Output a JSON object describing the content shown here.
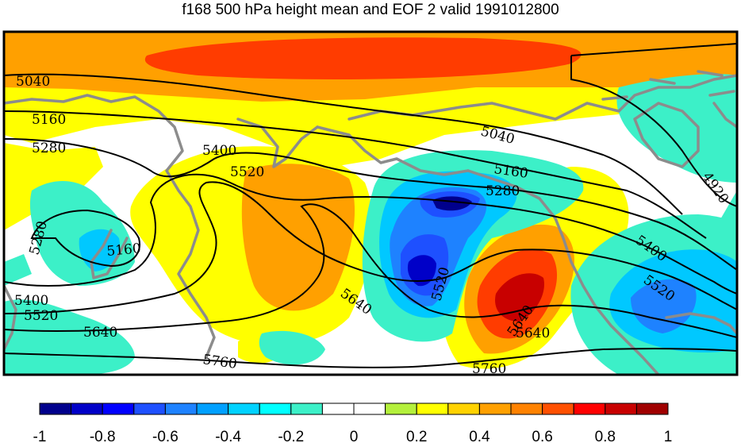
{
  "title": "f168 500 hPa height mean and EOF 2 valid 1991012800",
  "contour_labels": [
    "5040",
    "5160",
    "5280",
    "5400",
    "5520",
    "5640",
    "5760",
    "5040",
    "5160",
    "5280",
    "5400",
    "5520",
    "5640",
    "5760",
    "4920",
    "5280",
    "5160",
    "5400",
    "5520",
    "5640",
    "5640",
    "5520"
  ],
  "colorbar": {
    "ticks": [
      "-1",
      "-0.8",
      "-0.6",
      "-0.4",
      "-0.2",
      "0",
      "0.2",
      "0.4",
      "0.6",
      "0.8",
      "1"
    ],
    "colors": [
      "#00008c",
      "#0000c8",
      "#0000ff",
      "#1e50ff",
      "#1e82ff",
      "#00a0ff",
      "#00d2ff",
      "#00ffff",
      "#3cf0c8",
      "#ffffff",
      "#ffffff",
      "#b4f03c",
      "#ffff00",
      "#ffd200",
      "#ffa000",
      "#ff8200",
      "#ff5000",
      "#ff0000",
      "#c80000",
      "#a00000"
    ]
  },
  "fill_colors": {
    "yellow": "#ffff00",
    "gold": "#ffd200",
    "orange": "#ffa000",
    "darkorange": "#ff8200",
    "red": "#ff3c00",
    "darkred": "#c80000",
    "cyan": "#3cf0c8",
    "lightblue": "#00c8ff",
    "blue": "#1e82ff",
    "midblue": "#1e50ff",
    "darkblue": "#0000c8",
    "navy": "#00008c",
    "coast": "#8c8c8c"
  }
}
